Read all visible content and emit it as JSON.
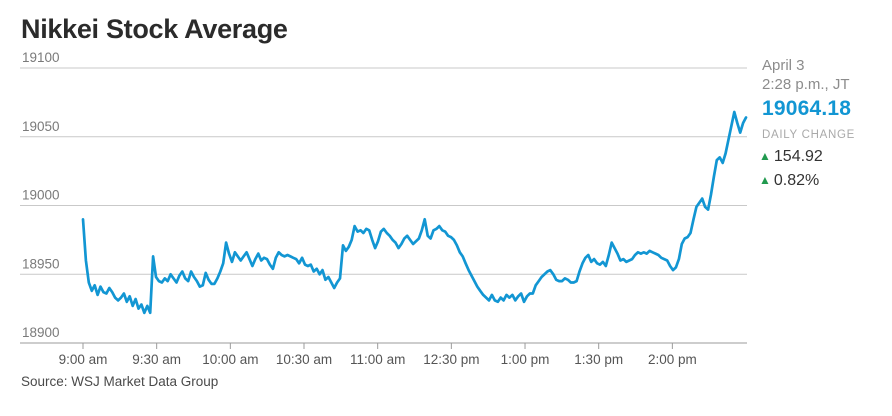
{
  "header": {
    "title": "Nikkei Stock Average"
  },
  "quote": {
    "date": "April 3",
    "time": "2:28 p.m., JT",
    "last": "19064.18",
    "daily_change_label": "DAILY CHANGE",
    "change_abs": "154.92",
    "change_pct": "0.82%",
    "direction": "up",
    "up_arrow": "▲"
  },
  "source": {
    "text": "Source: WSJ Market Data Group"
  },
  "colors": {
    "line_blue": "#1296d3",
    "quote_blue": "#1296d3",
    "up_green": "#219a4f",
    "grid": "#c9c9c9",
    "axis": "#9b9b9b",
    "y_label": "#7a7a7a",
    "x_label": "#555555"
  },
  "chart_data": {
    "type": "line",
    "title": "Nikkei Stock Average",
    "ylim": [
      18900,
      19100
    ],
    "y_ticks": [
      19100,
      19050,
      19000,
      18950,
      18900
    ],
    "x_tick_labels": [
      "9:00 am",
      "9:30 am",
      "10:00 am",
      "10:30 am",
      "11:00 am",
      "12:30 pm",
      "1:00 pm",
      "1:30 pm",
      "2:00 pm"
    ],
    "x_axis_note": "Tokyo session; 11:30 am - 12:30 pm lunch break omitted between the 11:00 am and 12:30 pm ticks",
    "grid": true,
    "legend": "none",
    "last_value": 19064.18,
    "series": [
      {
        "name": "Nikkei Stock Average",
        "samples_evenly_spaced": true,
        "t_start_tick": 0,
        "t_end_tick": 9,
        "values": [
          18990,
          18960,
          18944,
          18938,
          18942,
          18935,
          18941,
          18937,
          18936,
          18940,
          18937,
          18933,
          18931,
          18933,
          18936,
          18930,
          18934,
          18927,
          18932,
          18925,
          18928,
          18922,
          18927,
          18922,
          18963,
          18948,
          18945,
          18944,
          18947,
          18945,
          18950,
          18947,
          18944,
          18949,
          18952,
          18947,
          18945,
          18952,
          18948,
          18945,
          18941,
          18942,
          18951,
          18946,
          18943,
          18943,
          18947,
          18952,
          18958,
          18973,
          18965,
          18959,
          18966,
          18963,
          18960,
          18963,
          18966,
          18961,
          18956,
          18961,
          18965,
          18960,
          18962,
          18961,
          18957,
          18954,
          18962,
          18966,
          18964,
          18963,
          18964,
          18963,
          18962,
          18961,
          18958,
          18962,
          18957,
          18956,
          18957,
          18952,
          18954,
          18950,
          18953,
          18946,
          18948,
          18944,
          18940,
          18944,
          18947,
          18971,
          18967,
          18970,
          18975,
          18985,
          18981,
          18982,
          18980,
          18983,
          18982,
          18975,
          18969,
          18974,
          18981,
          18983,
          18980,
          18978,
          18975,
          18973,
          18969,
          18972,
          18976,
          18978,
          18975,
          18972,
          18974,
          18976,
          18982,
          18990,
          18978,
          18976,
          18982,
          18983,
          18985,
          18982,
          18981,
          18978,
          18977,
          18975,
          18971,
          18966,
          18963,
          18958,
          18953,
          18949,
          18945,
          18941,
          18938,
          18935,
          18933,
          18931,
          18935,
          18931,
          18930,
          18933,
          18931,
          18935,
          18933,
          18935,
          18931,
          18934,
          18936,
          18930,
          18934,
          18936,
          18936,
          18942,
          18945,
          18948,
          18950,
          18952,
          18953,
          18950,
          18946,
          18945,
          18945,
          18947,
          18946,
          18944,
          18944,
          18945,
          18952,
          18958,
          18962,
          18964,
          18959,
          18961,
          18958,
          18957,
          18959,
          18956,
          18964,
          18973,
          18969,
          18965,
          18960,
          18961,
          18959,
          18960,
          18961,
          18964,
          18966,
          18965,
          18966,
          18965,
          18967,
          18966,
          18965,
          18964,
          18962,
          18961,
          18960,
          18956,
          18953,
          18955,
          18961,
          18972,
          18976,
          18977,
          18980,
          18990,
          18999,
          19002,
          19005,
          18999,
          18997,
          19008,
          19021,
          19033,
          19035,
          19031,
          19038,
          19048,
          19058,
          19068,
          19060,
          19053,
          19060,
          19064
        ]
      }
    ]
  }
}
